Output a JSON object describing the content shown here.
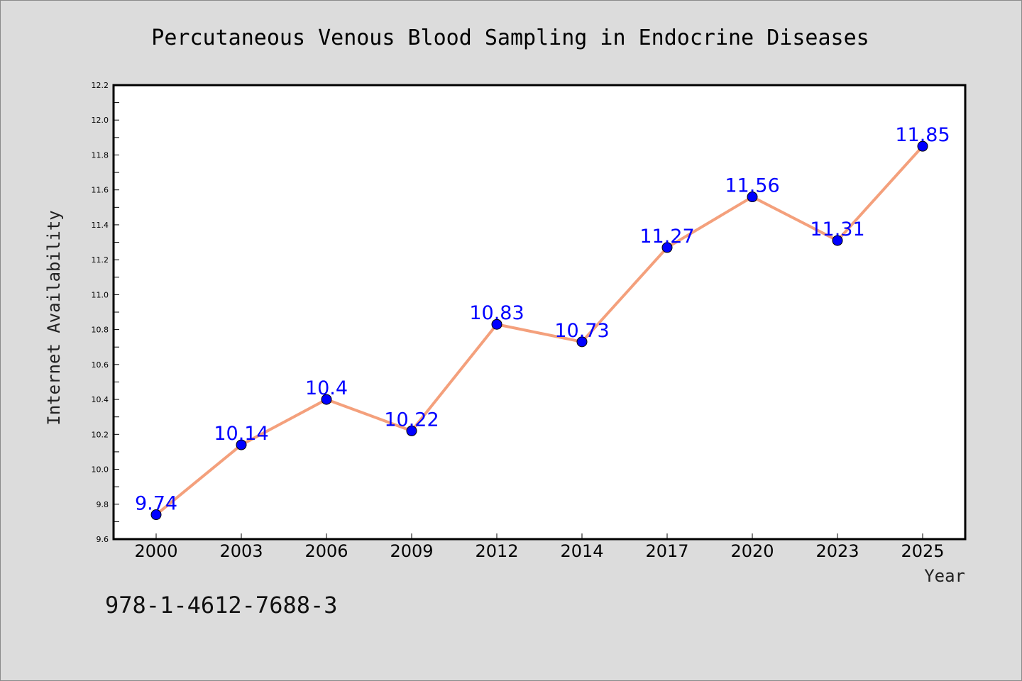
{
  "chart_data": {
    "type": "line",
    "title": "Percutaneous Venous Blood Sampling in Endocrine Diseases",
    "xlabel": "Year",
    "ylabel": "Internet Availability",
    "categories": [
      "2000",
      "2003",
      "2006",
      "2009",
      "2012",
      "2014",
      "2017",
      "2020",
      "2023",
      "2025"
    ],
    "series": [
      {
        "values": [
          9.74,
          10.14,
          10.4,
          10.22,
          10.83,
          10.73,
          11.27,
          11.56,
          11.31,
          11.85
        ],
        "data_labels": [
          "9.74",
          "10.14",
          "10.4",
          "10.22",
          "10.83",
          "10.73",
          "11.27",
          "11.56",
          "11.31",
          "11.85"
        ],
        "line_color": "#f4a07c",
        "marker_color": "#0000ff"
      }
    ],
    "ylim": [
      9.6,
      12.2
    ],
    "yticks": [
      "9.6",
      "9.8",
      "10.0",
      "10.2",
      "10.4",
      "10.6",
      "10.8",
      "11.0",
      "11.2",
      "11.4",
      "11.6",
      "11.8",
      "12.0",
      "12.2"
    ],
    "grid": false,
    "legend": "none"
  },
  "footer_text": "978-1-4612-7688-3",
  "colors": {
    "background": "#dcdcdc",
    "plot_background": "#ffffff",
    "line": "#f4a07c",
    "marker": "#0000ff",
    "data_label": "#0000ff"
  }
}
